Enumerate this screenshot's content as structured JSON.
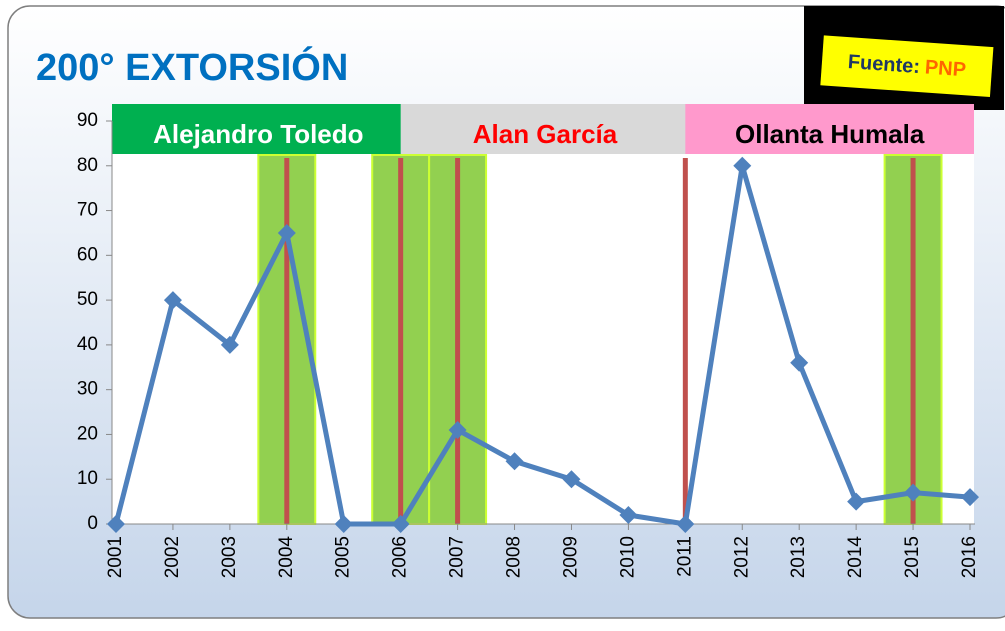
{
  "chart_data": {
    "type": "line",
    "title": "200°  EXTORSIÓN",
    "source_label": "Fuente:",
    "source": "PNP",
    "x": [
      2001,
      2002,
      2003,
      2004,
      2005,
      2006,
      2007,
      2008,
      2009,
      2010,
      2011,
      2012,
      2013,
      2014,
      2015,
      2016
    ],
    "series": [
      {
        "name": "Extorsión",
        "color": "#4f81bd",
        "values": [
          0,
          50,
          40,
          65,
          0,
          0,
          21,
          14,
          10,
          2,
          0,
          80,
          36,
          5,
          7,
          6
        ]
      }
    ],
    "xlim": [
      2001,
      2016
    ],
    "xticks": [
      2001,
      2002,
      2003,
      2004,
      2005,
      2006,
      2007,
      2008,
      2009,
      2010,
      2011,
      2012,
      2013,
      2014,
      2015,
      2016
    ],
    "ylim": [
      0,
      90
    ],
    "yticks": [
      0,
      10,
      20,
      30,
      40,
      50,
      60,
      70,
      80,
      90
    ],
    "periods": [
      {
        "label": "Alejandro Toledo",
        "start": 2001,
        "end": 2006,
        "color": "#00b050",
        "text_color": "#ffffff"
      },
      {
        "label": "Alan García",
        "start": 2006,
        "end": 2011,
        "color": "#d9d9d9",
        "text_color": "#ff0000"
      },
      {
        "label": "Ollanta Humala",
        "start": 2011,
        "end": 2016,
        "color": "#ff99cc",
        "text_color": "#000000"
      }
    ],
    "highlight_years": [
      2004,
      2006,
      2007,
      2015
    ],
    "highlight_color": "#92d050",
    "marker_years": [
      2004,
      2006,
      2007,
      2011,
      2015
    ],
    "marker_color": "#c0504d"
  }
}
